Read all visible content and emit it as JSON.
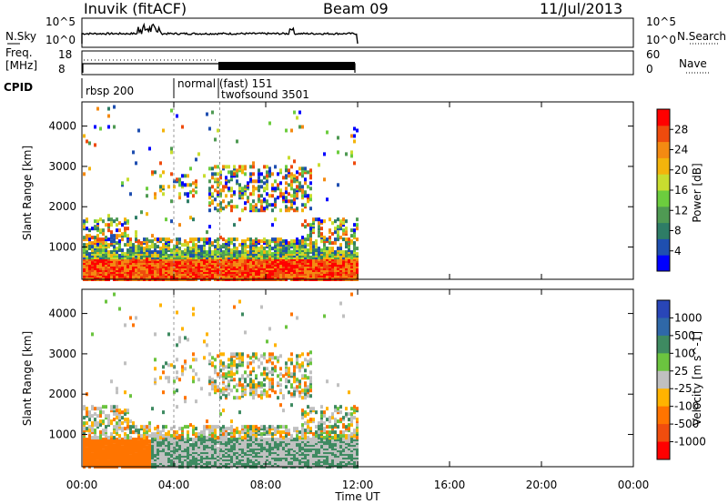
{
  "header": {
    "station": "Inuvik (fitACF)",
    "beam": "Beam 09",
    "date": "11/Jul/2013"
  },
  "noise_panel": {
    "left_label": "N.Sky",
    "right_label": "N.Search",
    "left_ticks": [
      "10^5",
      "10^0"
    ],
    "right_ticks": [
      "10^5",
      "10^0"
    ]
  },
  "freq_panel": {
    "left_label_1": "Freq.",
    "left_label_2": "[MHz]",
    "right_label": "Nave",
    "left_ticks": [
      "18",
      "8"
    ],
    "right_ticks": [
      "60",
      "0"
    ]
  },
  "cpid": {
    "label": "CPID",
    "segments": [
      {
        "text": "rbsp 200",
        "start_hr": 0.0
      },
      {
        "text": "normal (fast) 151",
        "start_hr": 4.0
      },
      {
        "text": "twofsound 3501",
        "start_hr": 6.0
      }
    ]
  },
  "colors": {
    "power_scale": [
      "#0000ff",
      "#1f4fb0",
      "#2e7d66",
      "#4f9a53",
      "#6ccd3e",
      "#c8dd2f",
      "#f3b40c",
      "#f48a12",
      "#ef4b0d",
      "#ff0000"
    ],
    "velocity_scale": [
      "#2946b8",
      "#2f68a8",
      "#3e8a61",
      "#6bc43f",
      "#c0c0c0",
      "#ffb300",
      "#ff7400",
      "#f04d0e",
      "#ff0000"
    ]
  },
  "chart_data": [
    {
      "type": "heatmap",
      "name": "power",
      "ylabel": "Slant Range [km]",
      "yticks": [
        1000,
        2000,
        3000,
        4000
      ],
      "ylim": [
        200,
        4600
      ],
      "colorbar": {
        "label": "Power [dB]",
        "ticks": [
          4,
          8,
          12,
          16,
          20,
          24,
          28
        ],
        "range": [
          0,
          32
        ]
      },
      "x_ticks": [
        "00:00",
        "04:00",
        "08:00",
        "12:00",
        "16:00",
        "20:00",
        "00:00"
      ],
      "xlabel": "Time UT"
    },
    {
      "type": "heatmap",
      "name": "velocity",
      "ylabel": "Slant Range [km]",
      "yticks": [
        1000,
        2000,
        3000,
        4000
      ],
      "ylim": [
        200,
        4600
      ],
      "colorbar": {
        "label": "Velocity [m s^-1]",
        "ticks": [
          "1000",
          "500",
          "100",
          "25",
          "-25",
          "-100",
          "-500",
          "-1000"
        ]
      },
      "x_ticks": [
        "00:00",
        "04:00",
        "08:00",
        "12:00",
        "16:00",
        "20:00",
        "00:00"
      ],
      "xlabel": "Time UT"
    }
  ],
  "x_axis": {
    "ticks": [
      "00:00",
      "04:00",
      "08:00",
      "12:00",
      "16:00",
      "20:00",
      "00:00"
    ],
    "label": "Time UT",
    "range_hours": [
      0,
      24
    ]
  }
}
